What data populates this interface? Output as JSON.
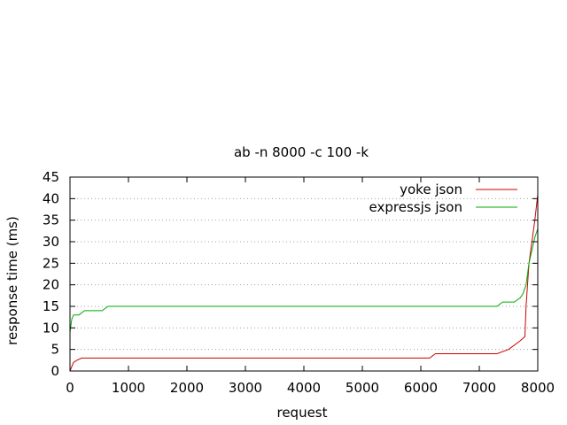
{
  "chart_data": {
    "type": "line",
    "title": "ab -n 8000 -c 100 -k",
    "xlabel": "request",
    "ylabel": "response time (ms)",
    "xlim": [
      0,
      8000
    ],
    "ylim": [
      0,
      45
    ],
    "xticks": [
      0,
      1000,
      2000,
      3000,
      4000,
      5000,
      6000,
      7000,
      8000
    ],
    "yticks": [
      0,
      5,
      10,
      15,
      20,
      25,
      30,
      35,
      40,
      45
    ],
    "grid": "horizontal dotted",
    "legend_position": "top-right",
    "series": [
      {
        "name": "yoke json",
        "color": "#cc0000",
        "x": [
          0,
          30,
          60,
          120,
          200,
          300,
          6150,
          6250,
          6300,
          7300,
          7500,
          7700,
          7780,
          7800,
          7850,
          7900,
          7950,
          8000
        ],
        "y": [
          0,
          1,
          2,
          2.5,
          3,
          3,
          3,
          4,
          4,
          4,
          5,
          7,
          8,
          15,
          25,
          30,
          35,
          41
        ]
      },
      {
        "name": "expressjs json",
        "color": "#00aa00",
        "x": [
          0,
          30,
          60,
          100,
          150,
          250,
          350,
          550,
          650,
          1000,
          7300,
          7400,
          7600,
          7700,
          7750,
          7800,
          7850,
          7900,
          7950,
          8000
        ],
        "y": [
          9,
          12,
          13,
          13,
          13,
          14,
          14,
          14,
          15,
          15,
          15,
          16,
          16,
          17,
          18,
          20,
          25,
          28,
          31,
          33
        ]
      }
    ]
  }
}
